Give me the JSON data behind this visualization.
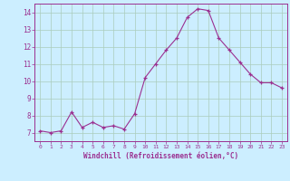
{
  "x": [
    0,
    1,
    2,
    3,
    4,
    5,
    6,
    7,
    8,
    9,
    10,
    11,
    12,
    13,
    14,
    15,
    16,
    17,
    18,
    19,
    20,
    21,
    22,
    23
  ],
  "y": [
    7.1,
    7.0,
    7.1,
    8.2,
    7.3,
    7.6,
    7.3,
    7.4,
    7.2,
    8.1,
    10.2,
    11.0,
    11.8,
    12.5,
    13.7,
    14.2,
    14.1,
    12.5,
    11.8,
    11.1,
    10.4,
    9.9,
    9.9,
    9.6
  ],
  "line_color": "#9b3090",
  "marker": "+",
  "bg_color": "#cceeff",
  "grid_color": "#aaccbb",
  "axis_color": "#9b3090",
  "xlabel": "Windchill (Refroidissement éolien,°C)",
  "xlim": [
    -0.5,
    23.5
  ],
  "ylim": [
    6.5,
    14.5
  ],
  "yticks": [
    7,
    8,
    9,
    10,
    11,
    12,
    13,
    14
  ],
  "xticks": [
    0,
    1,
    2,
    3,
    4,
    5,
    6,
    7,
    8,
    9,
    10,
    11,
    12,
    13,
    14,
    15,
    16,
    17,
    18,
    19,
    20,
    21,
    22,
    23
  ]
}
